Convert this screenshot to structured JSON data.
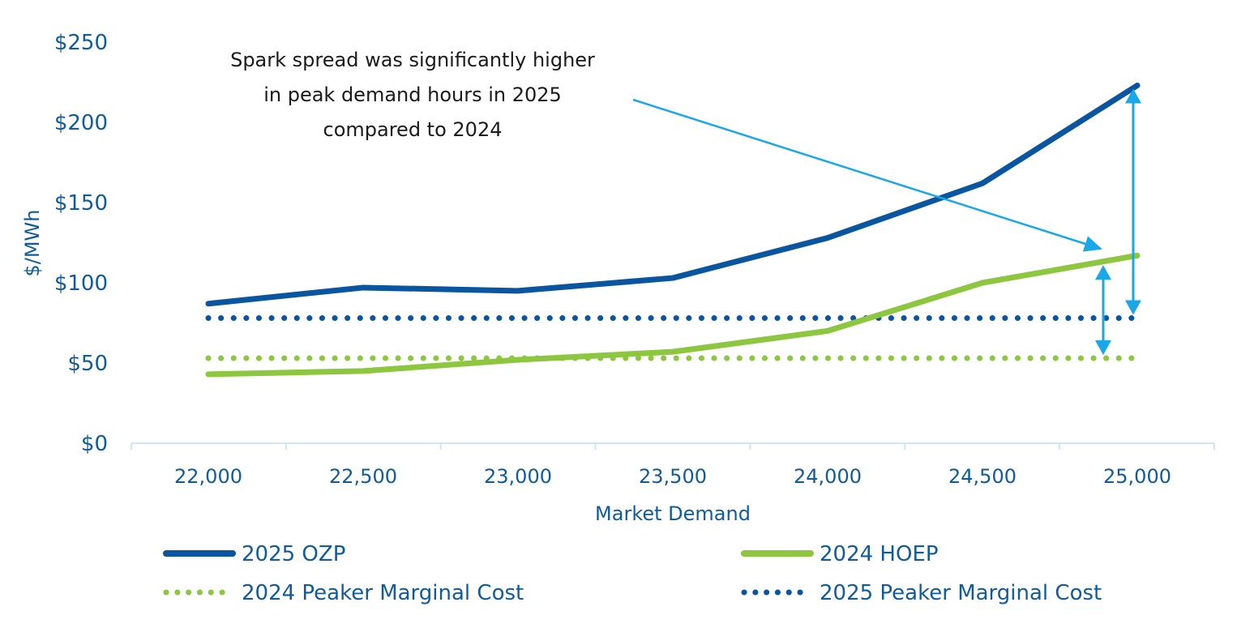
{
  "chart_data": {
    "type": "line",
    "title": "",
    "xlabel": "Market Demand",
    "ylabel": "$/MWh",
    "x": [
      22000,
      22500,
      23000,
      23500,
      24000,
      24500,
      25000
    ],
    "x_tick_labels": [
      "22,000",
      "22,500",
      "23,000",
      "23,500",
      "24,000",
      "24,500",
      "25,000"
    ],
    "y_ticks": [
      0,
      50,
      100,
      150,
      200,
      250
    ],
    "y_tick_labels": [
      "$0",
      "$50",
      "$100",
      "$150",
      "$200",
      "$250"
    ],
    "ylim": [
      0,
      250
    ],
    "grid": false,
    "legend_position": "bottom",
    "series": [
      {
        "name": "2025 OZP",
        "style": "solid",
        "color": "#0a55a0",
        "values": [
          87,
          97,
          95,
          103,
          128,
          162,
          223
        ]
      },
      {
        "name": "2024 HOEP",
        "style": "solid",
        "color": "#8dc63f",
        "values": [
          43,
          45,
          52,
          57,
          70,
          100,
          117
        ]
      },
      {
        "name": "2024 Peaker Marginal Cost",
        "style": "dotted",
        "color": "#8dc63f",
        "values": [
          53,
          53,
          53,
          53,
          53,
          53,
          53
        ]
      },
      {
        "name": "2025 Peaker Marginal Cost",
        "style": "dotted",
        "color": "#0a55a0",
        "values": [
          78,
          78,
          78,
          78,
          78,
          78,
          78
        ]
      }
    ],
    "annotation": {
      "lines": [
        "Spark spread was significantly higher",
        "in peak demand hours in 2025",
        "compared to 2024"
      ],
      "arrow_color": "#1aa7e8"
    }
  }
}
